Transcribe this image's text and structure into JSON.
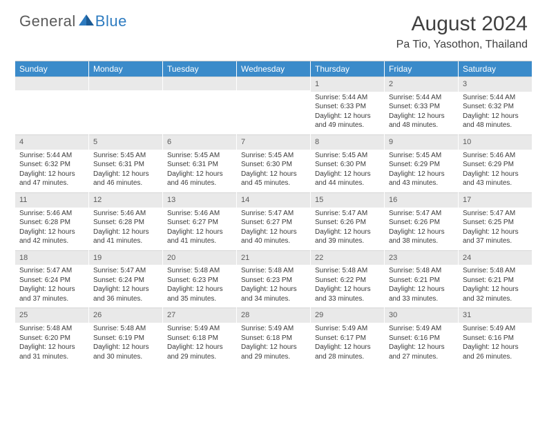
{
  "brand": {
    "textA": "General",
    "textB": "Blue"
  },
  "title": "August 2024",
  "location": "Pa Tio, Yasothon, Thailand",
  "colors": {
    "headerBlue": "#3b8bca",
    "dayNumBg": "#e9e9e9",
    "text": "#3a3a3a",
    "brandGray": "#5a5a5a",
    "brandBlue": "#2d7bc0"
  },
  "weekdays": [
    "Sunday",
    "Monday",
    "Tuesday",
    "Wednesday",
    "Thursday",
    "Friday",
    "Saturday"
  ],
  "weeks": [
    [
      {
        "n": "",
        "sr": "",
        "ss": "",
        "dl": ""
      },
      {
        "n": "",
        "sr": "",
        "ss": "",
        "dl": ""
      },
      {
        "n": "",
        "sr": "",
        "ss": "",
        "dl": ""
      },
      {
        "n": "",
        "sr": "",
        "ss": "",
        "dl": ""
      },
      {
        "n": "1",
        "sr": "Sunrise: 5:44 AM",
        "ss": "Sunset: 6:33 PM",
        "dl": "Daylight: 12 hours and 49 minutes."
      },
      {
        "n": "2",
        "sr": "Sunrise: 5:44 AM",
        "ss": "Sunset: 6:33 PM",
        "dl": "Daylight: 12 hours and 48 minutes."
      },
      {
        "n": "3",
        "sr": "Sunrise: 5:44 AM",
        "ss": "Sunset: 6:32 PM",
        "dl": "Daylight: 12 hours and 48 minutes."
      }
    ],
    [
      {
        "n": "4",
        "sr": "Sunrise: 5:44 AM",
        "ss": "Sunset: 6:32 PM",
        "dl": "Daylight: 12 hours and 47 minutes."
      },
      {
        "n": "5",
        "sr": "Sunrise: 5:45 AM",
        "ss": "Sunset: 6:31 PM",
        "dl": "Daylight: 12 hours and 46 minutes."
      },
      {
        "n": "6",
        "sr": "Sunrise: 5:45 AM",
        "ss": "Sunset: 6:31 PM",
        "dl": "Daylight: 12 hours and 46 minutes."
      },
      {
        "n": "7",
        "sr": "Sunrise: 5:45 AM",
        "ss": "Sunset: 6:30 PM",
        "dl": "Daylight: 12 hours and 45 minutes."
      },
      {
        "n": "8",
        "sr": "Sunrise: 5:45 AM",
        "ss": "Sunset: 6:30 PM",
        "dl": "Daylight: 12 hours and 44 minutes."
      },
      {
        "n": "9",
        "sr": "Sunrise: 5:45 AM",
        "ss": "Sunset: 6:29 PM",
        "dl": "Daylight: 12 hours and 43 minutes."
      },
      {
        "n": "10",
        "sr": "Sunrise: 5:46 AM",
        "ss": "Sunset: 6:29 PM",
        "dl": "Daylight: 12 hours and 43 minutes."
      }
    ],
    [
      {
        "n": "11",
        "sr": "Sunrise: 5:46 AM",
        "ss": "Sunset: 6:28 PM",
        "dl": "Daylight: 12 hours and 42 minutes."
      },
      {
        "n": "12",
        "sr": "Sunrise: 5:46 AM",
        "ss": "Sunset: 6:28 PM",
        "dl": "Daylight: 12 hours and 41 minutes."
      },
      {
        "n": "13",
        "sr": "Sunrise: 5:46 AM",
        "ss": "Sunset: 6:27 PM",
        "dl": "Daylight: 12 hours and 41 minutes."
      },
      {
        "n": "14",
        "sr": "Sunrise: 5:47 AM",
        "ss": "Sunset: 6:27 PM",
        "dl": "Daylight: 12 hours and 40 minutes."
      },
      {
        "n": "15",
        "sr": "Sunrise: 5:47 AM",
        "ss": "Sunset: 6:26 PM",
        "dl": "Daylight: 12 hours and 39 minutes."
      },
      {
        "n": "16",
        "sr": "Sunrise: 5:47 AM",
        "ss": "Sunset: 6:26 PM",
        "dl": "Daylight: 12 hours and 38 minutes."
      },
      {
        "n": "17",
        "sr": "Sunrise: 5:47 AM",
        "ss": "Sunset: 6:25 PM",
        "dl": "Daylight: 12 hours and 37 minutes."
      }
    ],
    [
      {
        "n": "18",
        "sr": "Sunrise: 5:47 AM",
        "ss": "Sunset: 6:24 PM",
        "dl": "Daylight: 12 hours and 37 minutes."
      },
      {
        "n": "19",
        "sr": "Sunrise: 5:47 AM",
        "ss": "Sunset: 6:24 PM",
        "dl": "Daylight: 12 hours and 36 minutes."
      },
      {
        "n": "20",
        "sr": "Sunrise: 5:48 AM",
        "ss": "Sunset: 6:23 PM",
        "dl": "Daylight: 12 hours and 35 minutes."
      },
      {
        "n": "21",
        "sr": "Sunrise: 5:48 AM",
        "ss": "Sunset: 6:23 PM",
        "dl": "Daylight: 12 hours and 34 minutes."
      },
      {
        "n": "22",
        "sr": "Sunrise: 5:48 AM",
        "ss": "Sunset: 6:22 PM",
        "dl": "Daylight: 12 hours and 33 minutes."
      },
      {
        "n": "23",
        "sr": "Sunrise: 5:48 AM",
        "ss": "Sunset: 6:21 PM",
        "dl": "Daylight: 12 hours and 33 minutes."
      },
      {
        "n": "24",
        "sr": "Sunrise: 5:48 AM",
        "ss": "Sunset: 6:21 PM",
        "dl": "Daylight: 12 hours and 32 minutes."
      }
    ],
    [
      {
        "n": "25",
        "sr": "Sunrise: 5:48 AM",
        "ss": "Sunset: 6:20 PM",
        "dl": "Daylight: 12 hours and 31 minutes."
      },
      {
        "n": "26",
        "sr": "Sunrise: 5:48 AM",
        "ss": "Sunset: 6:19 PM",
        "dl": "Daylight: 12 hours and 30 minutes."
      },
      {
        "n": "27",
        "sr": "Sunrise: 5:49 AM",
        "ss": "Sunset: 6:18 PM",
        "dl": "Daylight: 12 hours and 29 minutes."
      },
      {
        "n": "28",
        "sr": "Sunrise: 5:49 AM",
        "ss": "Sunset: 6:18 PM",
        "dl": "Daylight: 12 hours and 29 minutes."
      },
      {
        "n": "29",
        "sr": "Sunrise: 5:49 AM",
        "ss": "Sunset: 6:17 PM",
        "dl": "Daylight: 12 hours and 28 minutes."
      },
      {
        "n": "30",
        "sr": "Sunrise: 5:49 AM",
        "ss": "Sunset: 6:16 PM",
        "dl": "Daylight: 12 hours and 27 minutes."
      },
      {
        "n": "31",
        "sr": "Sunrise: 5:49 AM",
        "ss": "Sunset: 6:16 PM",
        "dl": "Daylight: 12 hours and 26 minutes."
      }
    ]
  ]
}
